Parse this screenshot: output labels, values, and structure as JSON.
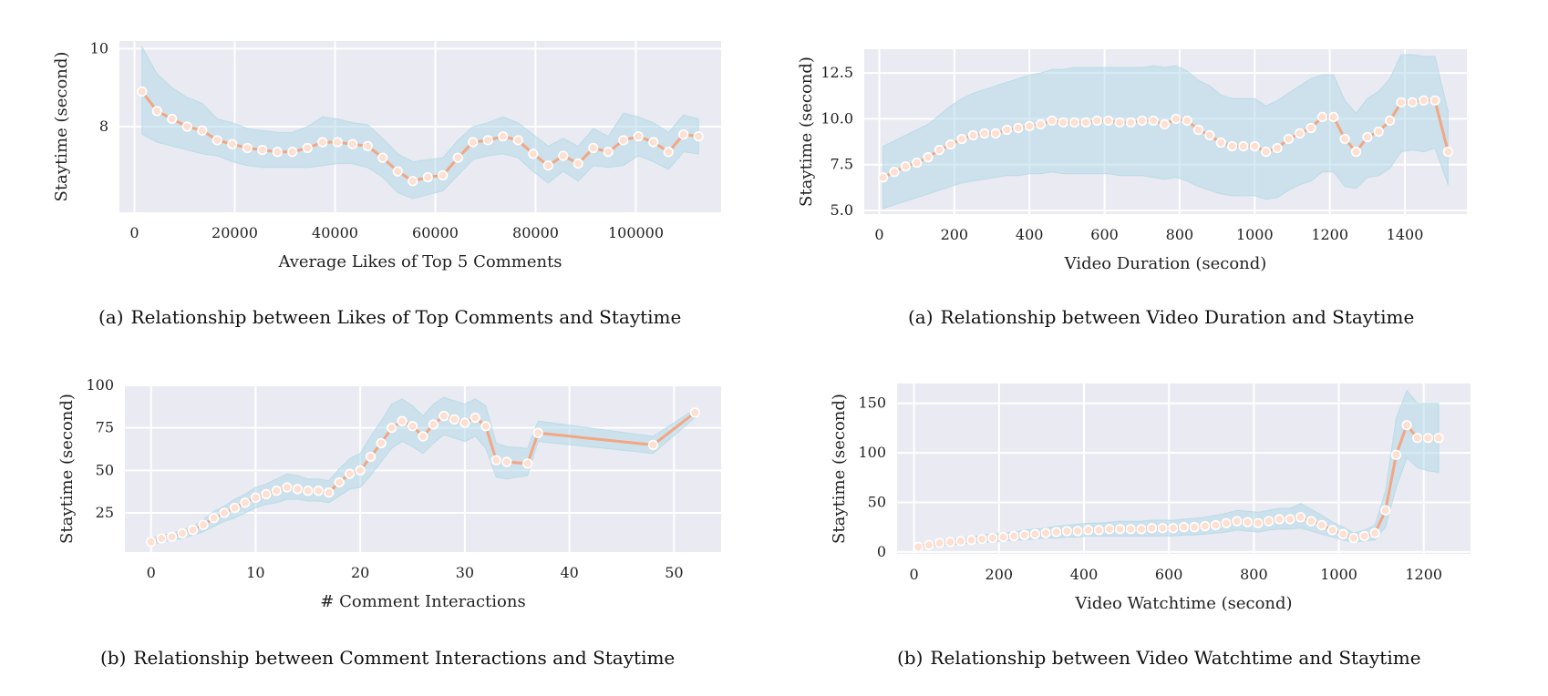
{
  "colors": {
    "plot_bg": "#eaeaf2",
    "grid": "#ffffff",
    "band": "#add8e6",
    "line": "#f4a582",
    "marker_fill": "#fde0d2",
    "marker_edge": "#ffffff"
  },
  "captions": [
    {
      "label": "(a)",
      "text": "Relationship between Likes of Top Comments and Staytime"
    },
    {
      "label": "(a)",
      "text": "Relationship between Video Duration and Staytime"
    },
    {
      "label": "(b)",
      "text": "Relationship between Comment Interactions and Staytime"
    },
    {
      "label": "(b)",
      "text": "Relationship between Video Watchtime and Staytime"
    }
  ],
  "chart_data": [
    {
      "type": "line",
      "xlabel": "Average Likes of Top 5 Comments",
      "ylabel": "Staytime (second)",
      "xlim": [
        -3000,
        117000
      ],
      "ylim": [
        5.8,
        10.2
      ],
      "xticks": [
        0,
        20000,
        40000,
        60000,
        80000,
        100000
      ],
      "yticks": [
        8,
        10
      ],
      "grid": true,
      "series": [
        {
          "x": [
            1500,
            4500,
            7500,
            10500,
            13500,
            16500,
            19500,
            22500,
            25500,
            28500,
            31500,
            34500,
            37500,
            40500,
            43500,
            46500,
            49500,
            52500,
            55500,
            58500,
            61500,
            64500,
            67500,
            70500,
            73500,
            76500,
            79500,
            82500,
            85500,
            88500,
            91500,
            94500,
            97500,
            100500,
            103500,
            106500,
            109500,
            112500
          ],
          "y": [
            8.9,
            8.4,
            8.2,
            8.0,
            7.9,
            7.65,
            7.55,
            7.45,
            7.4,
            7.35,
            7.35,
            7.45,
            7.6,
            7.6,
            7.55,
            7.5,
            7.2,
            6.85,
            6.6,
            6.7,
            6.75,
            7.2,
            7.6,
            7.65,
            7.75,
            7.65,
            7.3,
            7.0,
            7.25,
            7.05,
            7.45,
            7.35,
            7.65,
            7.75,
            7.6,
            7.35,
            7.8,
            7.75
          ],
          "lower": [
            7.8,
            7.6,
            7.5,
            7.4,
            7.3,
            7.25,
            7.1,
            7.0,
            6.95,
            6.95,
            6.95,
            6.95,
            7.0,
            7.05,
            7.05,
            6.95,
            6.7,
            6.3,
            6.15,
            6.25,
            6.35,
            6.75,
            7.15,
            7.25,
            7.3,
            7.2,
            6.85,
            6.55,
            6.85,
            6.6,
            7.0,
            6.95,
            7.0,
            7.25,
            7.1,
            6.9,
            7.35,
            7.3
          ],
          "upper": [
            10.05,
            9.35,
            9.0,
            8.75,
            8.6,
            8.2,
            8.1,
            7.95,
            7.9,
            7.85,
            7.85,
            8.0,
            8.25,
            8.2,
            8.1,
            8.05,
            7.7,
            7.3,
            7.1,
            7.15,
            7.2,
            7.65,
            8.0,
            8.1,
            8.25,
            8.1,
            7.8,
            7.5,
            7.7,
            7.5,
            7.95,
            7.75,
            8.35,
            8.25,
            8.1,
            7.85,
            8.3,
            8.2
          ]
        }
      ]
    },
    {
      "type": "line",
      "xlabel": "Video Duration (second)",
      "ylabel": "Staytime (second)",
      "xlim": [
        -40,
        1565
      ],
      "ylim": [
        4.8,
        13.8
      ],
      "xticks": [
        0,
        200,
        400,
        600,
        800,
        1000,
        1200,
        1400
      ],
      "yticks": [
        5.0,
        7.5,
        10.0,
        12.5
      ],
      "ytick_labels": [
        "5.0",
        "7.5",
        "10.0",
        "12.5"
      ],
      "grid": true,
      "series": [
        {
          "x": [
            10,
            40,
            70,
            100,
            130,
            160,
            190,
            220,
            250,
            280,
            310,
            340,
            370,
            400,
            430,
            460,
            490,
            520,
            550,
            580,
            610,
            640,
            670,
            700,
            730,
            760,
            790,
            820,
            850,
            880,
            910,
            940,
            970,
            1000,
            1030,
            1060,
            1090,
            1120,
            1150,
            1180,
            1210,
            1240,
            1270,
            1300,
            1330,
            1360,
            1390,
            1420,
            1450,
            1480,
            1515
          ],
          "y": [
            6.8,
            7.1,
            7.4,
            7.6,
            7.9,
            8.3,
            8.6,
            8.9,
            9.1,
            9.2,
            9.2,
            9.4,
            9.5,
            9.6,
            9.7,
            9.9,
            9.8,
            9.8,
            9.8,
            9.9,
            9.9,
            9.8,
            9.8,
            9.9,
            9.9,
            9.7,
            10.0,
            9.9,
            9.4,
            9.1,
            8.7,
            8.5,
            8.5,
            8.5,
            8.2,
            8.4,
            8.9,
            9.2,
            9.5,
            10.1,
            10.1,
            8.9,
            8.2,
            9.0,
            9.3,
            9.9,
            10.9,
            10.9,
            11.0,
            11.0,
            8.2
          ],
          "lower": [
            5.1,
            5.3,
            5.5,
            5.7,
            5.9,
            6.1,
            6.3,
            6.5,
            6.6,
            6.7,
            6.8,
            6.9,
            6.9,
            7.0,
            7.0,
            7.1,
            7.0,
            7.0,
            7.0,
            7.0,
            7.0,
            6.9,
            6.9,
            6.9,
            6.8,
            6.7,
            6.8,
            6.6,
            6.3,
            6.1,
            5.9,
            5.8,
            5.8,
            5.8,
            5.6,
            5.7,
            6.1,
            6.4,
            6.6,
            7.1,
            7.1,
            6.3,
            6.2,
            6.8,
            6.9,
            7.3,
            8.2,
            8.3,
            8.2,
            8.4,
            6.4
          ],
          "upper": [
            8.5,
            8.8,
            9.1,
            9.4,
            9.7,
            10.2,
            10.7,
            11.1,
            11.4,
            11.6,
            11.8,
            12.0,
            12.2,
            12.4,
            12.5,
            12.7,
            12.7,
            12.8,
            12.8,
            12.8,
            12.8,
            12.8,
            12.8,
            12.8,
            12.9,
            12.8,
            12.9,
            12.6,
            12.1,
            11.8,
            11.3,
            11.1,
            11.1,
            11.1,
            10.7,
            11.0,
            11.4,
            11.8,
            12.2,
            12.4,
            12.4,
            11.0,
            10.3,
            11.1,
            11.5,
            12.2,
            13.5,
            13.5,
            13.4,
            13.4,
            10.4
          ]
        }
      ]
    },
    {
      "type": "line",
      "xlabel": "# Comment Interactions",
      "ylabel": "Staytime (second)",
      "xlim": [
        -2.5,
        54.5
      ],
      "ylim": [
        2,
        100
      ],
      "xticks": [
        0,
        10,
        20,
        30,
        40,
        50
      ],
      "yticks": [
        25,
        50,
        75,
        100
      ],
      "grid": true,
      "series": [
        {
          "x": [
            0,
            1,
            2,
            3,
            4,
            5,
            6,
            7,
            8,
            9,
            10,
            11,
            12,
            13,
            14,
            15,
            16,
            17,
            18,
            19,
            20,
            21,
            22,
            23,
            24,
            25,
            26,
            27,
            28,
            29,
            30,
            31,
            32,
            33,
            34,
            36,
            37,
            48,
            52
          ],
          "y": [
            8,
            10,
            11,
            13,
            15,
            18,
            22,
            25,
            28,
            31,
            34,
            36,
            38,
            40,
            39,
            38,
            38,
            37,
            43,
            48,
            50,
            58,
            66,
            75,
            79,
            76,
            70,
            77,
            82,
            80,
            78,
            81,
            76,
            56,
            55,
            54,
            72,
            65,
            84
          ],
          "lower": [
            6,
            8,
            9,
            10,
            12,
            14,
            17,
            20,
            22,
            25,
            28,
            30,
            31,
            33,
            33,
            32,
            32,
            31,
            35,
            39,
            40,
            47,
            55,
            63,
            67,
            64,
            60,
            66,
            71,
            69,
            67,
            70,
            63,
            46,
            45,
            47,
            67,
            60,
            81
          ],
          "upper": [
            10,
            12,
            13,
            15,
            17,
            21,
            26,
            29,
            33,
            36,
            40,
            42,
            45,
            48,
            47,
            45,
            45,
            44,
            51,
            57,
            60,
            70,
            79,
            89,
            92,
            88,
            82,
            89,
            93,
            91,
            89,
            92,
            88,
            66,
            64,
            63,
            79,
            70,
            86
          ]
        }
      ]
    },
    {
      "type": "line",
      "xlabel": "Video Watchtime (second)",
      "ylabel": "Staytime (second)",
      "xlim": [
        -40,
        1310
      ],
      "ylim": [
        -2,
        170
      ],
      "xticks": [
        0,
        200,
        400,
        600,
        800,
        1000,
        1200
      ],
      "yticks": [
        0,
        50,
        100,
        150
      ],
      "grid": true,
      "series": [
        {
          "x": [
            10,
            35,
            60,
            85,
            110,
            135,
            160,
            185,
            210,
            235,
            260,
            285,
            310,
            335,
            360,
            385,
            410,
            435,
            460,
            485,
            510,
            535,
            560,
            585,
            610,
            635,
            660,
            685,
            710,
            735,
            760,
            785,
            810,
            835,
            860,
            885,
            910,
            935,
            960,
            985,
            1010,
            1035,
            1060,
            1085,
            1110,
            1135,
            1160,
            1185,
            1210,
            1235
          ],
          "y": [
            5,
            7,
            9,
            10,
            11,
            12,
            13,
            14,
            15,
            16,
            17,
            18,
            19,
            20,
            21,
            21,
            22,
            22,
            23,
            23,
            23,
            23,
            24,
            24,
            24,
            25,
            25,
            26,
            27,
            29,
            31,
            30,
            29,
            31,
            33,
            33,
            35,
            31,
            27,
            22,
            18,
            14,
            16,
            19,
            42,
            98,
            128,
            115,
            115,
            115
          ],
          "lower": [
            3,
            5,
            6,
            7,
            8,
            9,
            10,
            10,
            11,
            12,
            12,
            13,
            14,
            14,
            15,
            15,
            16,
            16,
            16,
            16,
            16,
            16,
            16,
            16,
            16,
            17,
            17,
            18,
            19,
            20,
            22,
            21,
            20,
            22,
            23,
            23,
            24,
            21,
            18,
            15,
            12,
            10,
            11,
            12,
            25,
            65,
            95,
            85,
            82,
            80
          ],
          "upper": [
            7,
            9,
            11,
            13,
            14,
            15,
            17,
            18,
            19,
            20,
            22,
            23,
            24,
            26,
            27,
            28,
            29,
            29,
            30,
            31,
            31,
            31,
            32,
            32,
            32,
            33,
            34,
            35,
            37,
            39,
            42,
            41,
            40,
            42,
            44,
            44,
            49,
            43,
            37,
            30,
            25,
            19,
            22,
            27,
            62,
            135,
            163,
            150,
            150,
            150
          ]
        }
      ]
    }
  ]
}
